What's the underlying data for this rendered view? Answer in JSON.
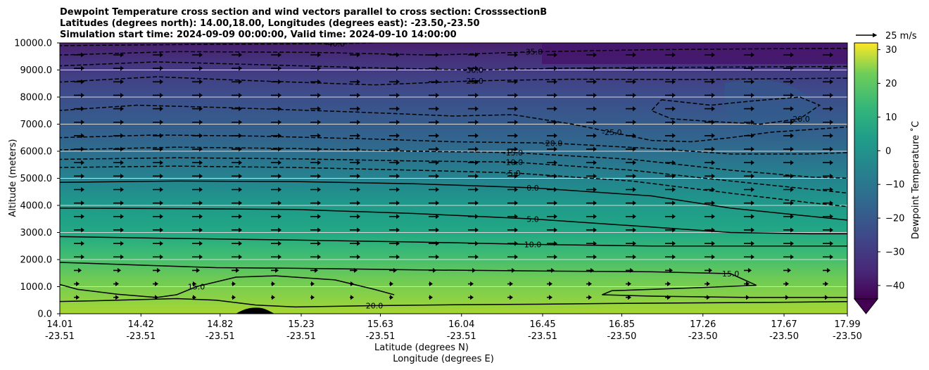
{
  "chart_data": {
    "type": "contour",
    "title_lines": [
      "Dewpoint Temperature cross section and wind vectors parallel to cross section: CrosssectionB",
      "Latitudes (degrees north): 14.00,18.00, Longitudes (degrees east): -23.50,-23.50",
      "Simulation start time: 2024-09-09 00:00:00, Valid time: 2024-09-10 14:00:00"
    ],
    "ylabel": "Altitude (meters)",
    "xlabel_lat": "Latitude (degrees N)",
    "xlabel_lon": "Longitude (degrees E)",
    "ylim": [
      0,
      10000
    ],
    "y_ticks": [
      "0.0",
      "1000.0",
      "2000.0",
      "3000.0",
      "4000.0",
      "5000.0",
      "6000.0",
      "7000.0",
      "8000.0",
      "9000.0",
      "10000.0"
    ],
    "x_ticks": [
      {
        "lat": "14.01",
        "lon": "-23.51"
      },
      {
        "lat": "14.42",
        "lon": "-23.51"
      },
      {
        "lat": "14.82",
        "lon": "-23.51"
      },
      {
        "lat": "15.23",
        "lon": "-23.51"
      },
      {
        "lat": "15.63",
        "lon": "-23.51"
      },
      {
        "lat": "16.04",
        "lon": "-23.51"
      },
      {
        "lat": "16.45",
        "lon": "-23.51"
      },
      {
        "lat": "16.85",
        "lon": "-23.50"
      },
      {
        "lat": "17.26",
        "lon": "-23.50"
      },
      {
        "lat": "17.67",
        "lon": "-23.50"
      },
      {
        "lat": "17.99",
        "lon": "-23.50"
      }
    ],
    "colorbar": {
      "label": "Dewpoint Temperature ˚C",
      "ticks": [
        "30",
        "20",
        "10",
        "0",
        "−10",
        "−20",
        "−30",
        "−40"
      ],
      "range": [
        -44,
        32
      ],
      "extend": "min",
      "colormap": "viridis"
    },
    "quiver_key": {
      "label": "25 m/s"
    },
    "grid": true,
    "contours": [
      {
        "level": -40,
        "label": "-40.0",
        "dashed": true,
        "points": [
          [
            14.0,
            9900
          ],
          [
            14.8,
            9950
          ],
          [
            15.4,
            9970
          ],
          [
            15.6,
            10000
          ]
        ]
      },
      {
        "level": -35,
        "label": "-35.0",
        "dashed": true,
        "points": [
          [
            14.0,
            9550
          ],
          [
            14.6,
            9680
          ],
          [
            15.3,
            9650
          ],
          [
            15.9,
            9550
          ],
          [
            16.4,
            9670
          ],
          [
            17.0,
            9750
          ],
          [
            17.5,
            9780
          ],
          [
            18.0,
            9800
          ]
        ]
      },
      {
        "level": -30,
        "label": "-30.0",
        "dashed": true,
        "points": [
          [
            14.0,
            9150
          ],
          [
            14.5,
            9300
          ],
          [
            15.0,
            9200
          ],
          [
            15.6,
            9080
          ],
          [
            16.1,
            9000
          ],
          [
            16.6,
            9070
          ],
          [
            17.2,
            9100
          ],
          [
            18.0,
            9130
          ]
        ]
      },
      {
        "level": -25,
        "label": "-25.0",
        "dashed": true,
        "points": [
          [
            14.0,
            8550
          ],
          [
            14.5,
            8750
          ],
          [
            15.0,
            8600
          ],
          [
            15.6,
            8450
          ],
          [
            16.1,
            8600
          ],
          [
            16.6,
            8660
          ],
          [
            17.2,
            8650
          ],
          [
            18.0,
            8700
          ]
        ]
      },
      {
        "level": -25,
        "label": "-25.0",
        "dashed": true,
        "points": [
          [
            14.0,
            7500
          ],
          [
            14.4,
            7700
          ],
          [
            14.9,
            7600
          ],
          [
            15.5,
            7450
          ],
          [
            16.0,
            7300
          ],
          [
            16.3,
            7350
          ],
          [
            16.6,
            7000
          ],
          [
            16.8,
            6700
          ],
          [
            17.0,
            6400
          ],
          [
            17.2,
            6350
          ],
          [
            17.4,
            6500
          ],
          [
            17.6,
            6700
          ],
          [
            17.8,
            6800
          ],
          [
            18.0,
            6900
          ]
        ]
      },
      {
        "level": -20,
        "label": "-20.0",
        "dashed": true,
        "points": [
          [
            17.05,
            7900
          ],
          [
            17.3,
            7700
          ],
          [
            17.5,
            7850
          ],
          [
            17.75,
            8000
          ],
          [
            17.85,
            7700
          ],
          [
            17.75,
            7200
          ],
          [
            17.55,
            7000
          ],
          [
            17.3,
            7100
          ],
          [
            17.1,
            7200
          ],
          [
            17.0,
            7500
          ],
          [
            17.05,
            7900
          ]
        ]
      },
      {
        "level": -20,
        "label": "-20.0",
        "dashed": true,
        "points": [
          [
            14.0,
            6500
          ],
          [
            14.5,
            6600
          ],
          [
            15.0,
            6560
          ],
          [
            15.6,
            6450
          ],
          [
            16.0,
            6350
          ],
          [
            16.5,
            6300
          ],
          [
            17.0,
            6100
          ],
          [
            17.4,
            5900
          ],
          [
            17.8,
            5900
          ],
          [
            18.0,
            5950
          ]
        ]
      },
      {
        "level": -15,
        "label": "-15.0",
        "dashed": true,
        "points": [
          [
            14.0,
            6050
          ],
          [
            14.6,
            6150
          ],
          [
            15.2,
            6100
          ],
          [
            15.8,
            6000
          ],
          [
            16.3,
            5950
          ],
          [
            16.9,
            5700
          ],
          [
            17.4,
            5300
          ],
          [
            17.8,
            5050
          ],
          [
            18.0,
            5000
          ]
        ]
      },
      {
        "level": -10,
        "label": "-10.0",
        "dashed": true,
        "points": [
          [
            14.0,
            5700
          ],
          [
            14.6,
            5760
          ],
          [
            15.2,
            5720
          ],
          [
            15.8,
            5640
          ],
          [
            16.3,
            5600
          ],
          [
            16.9,
            5300
          ],
          [
            17.4,
            4900
          ],
          [
            17.8,
            4600
          ],
          [
            18.0,
            4450
          ]
        ]
      },
      {
        "level": -5,
        "label": "-5.0",
        "dashed": true,
        "points": [
          [
            14.0,
            5400
          ],
          [
            14.6,
            5450
          ],
          [
            15.2,
            5400
          ],
          [
            15.8,
            5300
          ],
          [
            16.3,
            5200
          ],
          [
            16.9,
            4900
          ],
          [
            17.4,
            4450
          ],
          [
            17.8,
            4100
          ],
          [
            18.0,
            3950
          ]
        ]
      },
      {
        "level": 0,
        "label": "0.0",
        "dashed": false,
        "points": [
          [
            14.0,
            4850
          ],
          [
            14.6,
            4900
          ],
          [
            15.2,
            4880
          ],
          [
            15.8,
            4800
          ],
          [
            16.4,
            4650
          ],
          [
            17.0,
            4350
          ],
          [
            17.4,
            3900
          ],
          [
            17.8,
            3600
          ],
          [
            18.0,
            3450
          ]
        ]
      },
      {
        "level": 5,
        "label": "5.0",
        "dashed": false,
        "points": [
          [
            14.0,
            3900
          ],
          [
            14.6,
            3880
          ],
          [
            15.2,
            3850
          ],
          [
            15.8,
            3700
          ],
          [
            16.4,
            3500
          ],
          [
            17.0,
            3200
          ],
          [
            17.4,
            3000
          ],
          [
            17.8,
            2950
          ],
          [
            18.0,
            2950
          ]
        ]
      },
      {
        "level": 10,
        "label": "10.0",
        "dashed": false,
        "points": [
          [
            14.0,
            2850
          ],
          [
            14.6,
            2780
          ],
          [
            15.2,
            2720
          ],
          [
            15.8,
            2650
          ],
          [
            16.4,
            2560
          ],
          [
            17.0,
            2500
          ],
          [
            17.6,
            2500
          ],
          [
            18.0,
            2500
          ]
        ]
      },
      {
        "level": 15,
        "label": "15.0",
        "dashed": false,
        "points": [
          [
            14.0,
            1900
          ],
          [
            14.4,
            1800
          ],
          [
            14.8,
            1700
          ],
          [
            15.2,
            1680
          ],
          [
            15.8,
            1620
          ],
          [
            16.4,
            1580
          ],
          [
            17.0,
            1550
          ],
          [
            17.4,
            1480
          ],
          [
            17.53,
            1050
          ],
          [
            17.2,
            950
          ],
          [
            16.8,
            850
          ],
          [
            16.75,
            700
          ],
          [
            17.0,
            650
          ],
          [
            17.5,
            600
          ],
          [
            18.0,
            600
          ]
        ]
      },
      {
        "level": 15,
        "label": "15.0",
        "dashed": false,
        "points": [
          [
            14.0,
            1100
          ],
          [
            14.1,
            900
          ],
          [
            14.3,
            720
          ],
          [
            14.5,
            600
          ],
          [
            14.6,
            700
          ],
          [
            14.7,
            1000
          ],
          [
            14.9,
            1350
          ],
          [
            15.1,
            1400
          ],
          [
            15.4,
            1250
          ],
          [
            15.6,
            900
          ],
          [
            15.7,
            700
          ]
        ]
      },
      {
        "level": 20,
        "label": "20.0",
        "dashed": false,
        "points": [
          [
            14.0,
            450
          ],
          [
            14.2,
            480
          ],
          [
            14.4,
            520
          ],
          [
            14.6,
            560
          ],
          [
            14.8,
            500
          ],
          [
            15.0,
            320
          ],
          [
            15.2,
            250
          ],
          [
            15.6,
            300
          ],
          [
            16.0,
            330
          ],
          [
            16.4,
            350
          ],
          [
            16.8,
            380
          ],
          [
            17.2,
            400
          ],
          [
            17.6,
            420
          ],
          [
            18.0,
            450
          ]
        ]
      }
    ]
  }
}
